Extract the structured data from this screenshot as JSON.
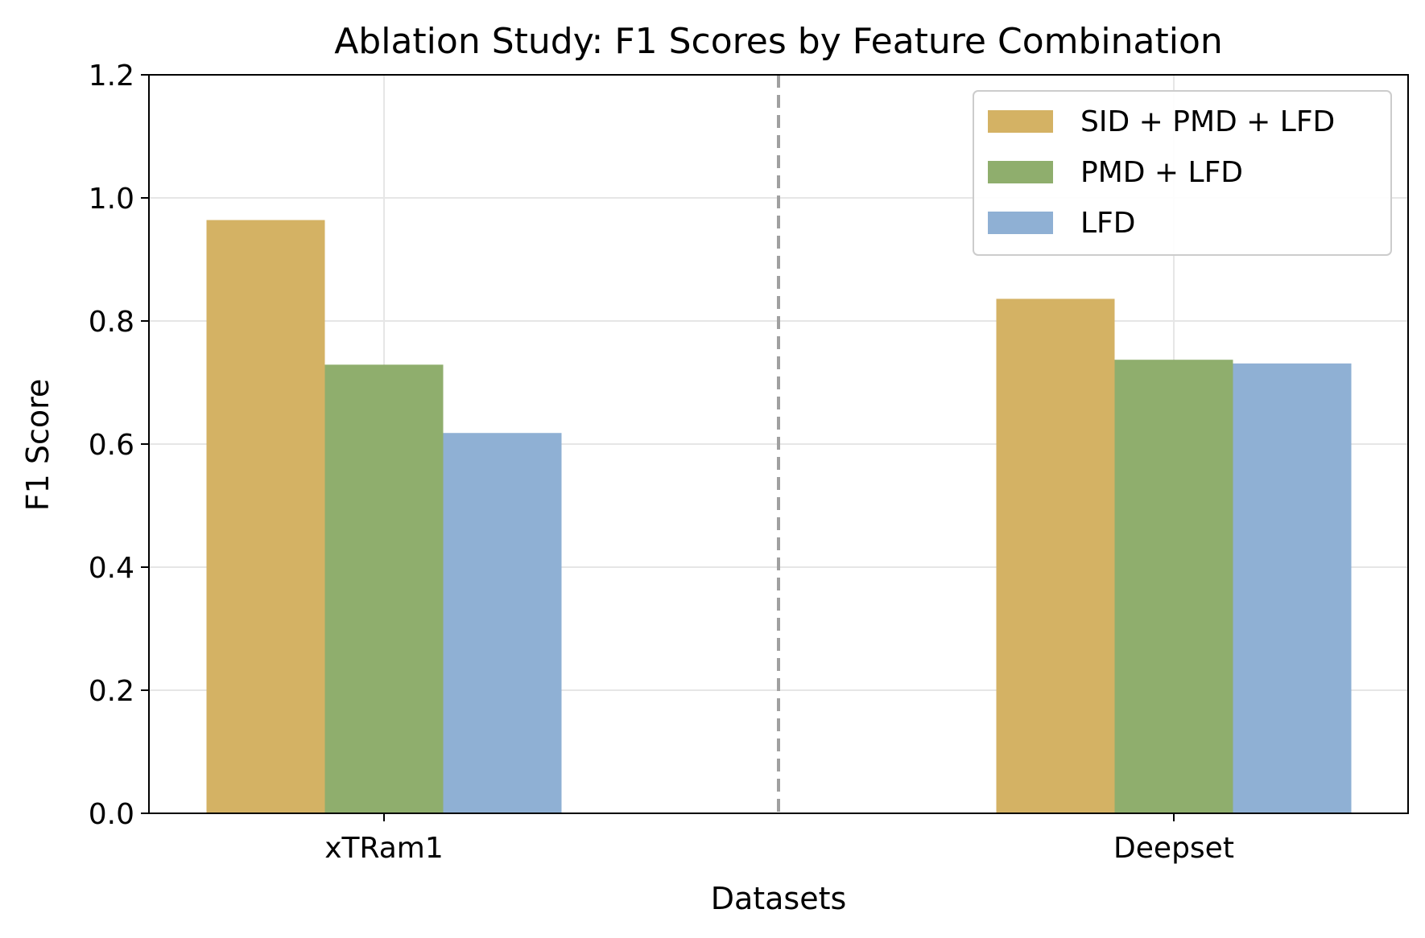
{
  "chart_data": {
    "type": "bar",
    "title": "Ablation Study: F1 Scores by Feature Combination",
    "xlabel": "Datasets",
    "ylabel": "F1 Score",
    "categories": [
      "xTRam1",
      "Deepset"
    ],
    "series": [
      {
        "name": "SID + PMD + LFD",
        "color": "#d4b264",
        "values": [
          0.964,
          0.836
        ]
      },
      {
        "name": "PMD + LFD",
        "color": "#8fae6d",
        "values": [
          0.729,
          0.737
        ]
      },
      {
        "name": "LFD",
        "color": "#8fb0d4",
        "values": [
          0.618,
          0.731
        ]
      }
    ],
    "ylim": [
      0,
      1.2
    ],
    "yticks": [
      "0.0",
      "0.2",
      "0.4",
      "0.6",
      "0.8",
      "1.0",
      "1.2"
    ],
    "grid": true,
    "legend_position": "top-right",
    "separator": "dashed vertical line between datasets"
  }
}
